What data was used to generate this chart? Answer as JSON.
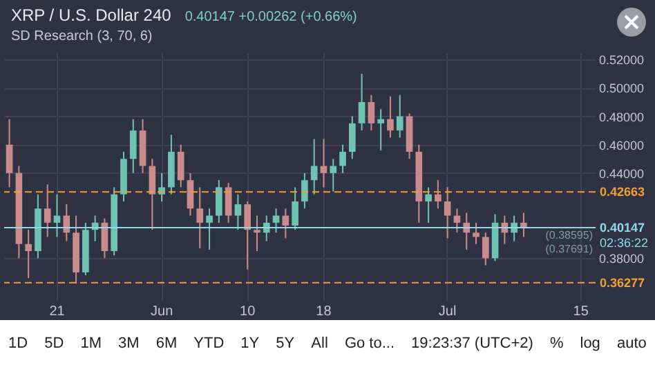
{
  "chart_data": {
    "type": "candlestick",
    "title": "XRP / U.S. Dollar  240",
    "subtitle": "0.40147  +0.00262 (+0.66%)",
    "categories": [
      null,
      null,
      null,
      null,
      null,
      "21",
      null,
      null,
      null,
      null,
      null,
      null,
      null,
      null,
      null,
      null,
      "Jun",
      null,
      null,
      null,
      null,
      null,
      null,
      null,
      null,
      "10",
      null,
      null,
      null,
      null,
      null,
      null,
      null,
      "18",
      null,
      null,
      null,
      null,
      null,
      null,
      null,
      null,
      null,
      null,
      null,
      null,
      "Jul",
      null,
      null,
      null,
      null,
      null,
      null,
      null,
      null,
      null,
      null,
      null,
      null,
      null,
      "15",
      null
    ],
    "ohlc": [
      [
        0.46,
        0.478,
        0.43,
        0.44
      ],
      [
        0.44,
        0.445,
        0.38,
        0.39
      ],
      [
        0.39,
        0.4,
        0.366,
        0.385
      ],
      [
        0.385,
        0.425,
        0.38,
        0.415
      ],
      [
        0.415,
        0.432,
        0.395,
        0.405
      ],
      [
        0.405,
        0.425,
        0.395,
        0.41
      ],
      [
        0.41,
        0.418,
        0.392,
        0.398
      ],
      [
        0.398,
        0.41,
        0.362,
        0.37
      ],
      [
        0.37,
        0.405,
        0.368,
        0.4
      ],
      [
        0.4,
        0.41,
        0.392,
        0.405
      ],
      [
        0.405,
        0.408,
        0.38,
        0.385
      ],
      [
        0.385,
        0.43,
        0.382,
        0.425
      ],
      [
        0.425,
        0.455,
        0.42,
        0.45
      ],
      [
        0.45,
        0.478,
        0.44,
        0.47
      ],
      [
        0.47,
        0.478,
        0.44,
        0.445
      ],
      [
        0.445,
        0.45,
        0.4,
        0.425
      ],
      [
        0.425,
        0.44,
        0.42,
        0.43
      ],
      [
        0.43,
        0.467,
        0.425,
        0.455
      ],
      [
        0.455,
        0.46,
        0.43,
        0.435
      ],
      [
        0.435,
        0.44,
        0.41,
        0.415
      ],
      [
        0.415,
        0.43,
        0.387,
        0.405
      ],
      [
        0.405,
        0.415,
        0.386,
        0.41
      ],
      [
        0.41,
        0.435,
        0.405,
        0.43
      ],
      [
        0.43,
        0.433,
        0.405,
        0.41
      ],
      [
        0.41,
        0.425,
        0.4,
        0.418
      ],
      [
        0.418,
        0.42,
        0.372,
        0.4
      ],
      [
        0.4,
        0.41,
        0.385,
        0.398
      ],
      [
        0.398,
        0.41,
        0.392,
        0.405
      ],
      [
        0.405,
        0.415,
        0.398,
        0.41
      ],
      [
        0.41,
        0.415,
        0.394,
        0.403
      ],
      [
        0.403,
        0.43,
        0.4,
        0.42
      ],
      [
        0.42,
        0.44,
        0.415,
        0.435
      ],
      [
        0.435,
        0.464,
        0.425,
        0.445
      ],
      [
        0.445,
        0.464,
        0.43,
        0.44
      ],
      [
        0.44,
        0.45,
        0.427,
        0.445
      ],
      [
        0.445,
        0.46,
        0.44,
        0.455
      ],
      [
        0.455,
        0.48,
        0.45,
        0.475
      ],
      [
        0.475,
        0.51,
        0.47,
        0.49
      ],
      [
        0.49,
        0.495,
        0.47,
        0.475
      ],
      [
        0.475,
        0.485,
        0.456,
        0.478
      ],
      [
        0.478,
        0.494,
        0.465,
        0.47
      ],
      [
        0.47,
        0.495,
        0.465,
        0.48
      ],
      [
        0.48,
        0.482,
        0.45,
        0.455
      ],
      [
        0.455,
        0.46,
        0.405,
        0.42
      ],
      [
        0.42,
        0.43,
        0.405,
        0.425
      ],
      [
        0.425,
        0.435,
        0.415,
        0.42
      ],
      [
        0.42,
        0.43,
        0.394,
        0.41
      ],
      [
        0.41,
        0.415,
        0.398,
        0.405
      ],
      [
        0.405,
        0.412,
        0.386,
        0.398
      ],
      [
        0.398,
        0.405,
        0.39,
        0.395
      ],
      [
        0.395,
        0.398,
        0.375,
        0.38
      ],
      [
        0.38,
        0.411,
        0.378,
        0.405
      ],
      [
        0.405,
        0.41,
        0.39,
        0.398
      ],
      [
        0.398,
        0.41,
        0.392,
        0.405
      ],
      [
        0.405,
        0.412,
        0.395,
        0.40147
      ],
      null,
      null,
      null,
      null,
      null,
      null,
      null
    ],
    "colors": [
      "#c98b8b",
      "#c98b8b",
      "#c98b8b",
      "#6fc3b2",
      "#c98b8b",
      "#6fc3b2",
      "#c98b8b",
      "#c98b8b",
      "#6fc3b2",
      "#6fc3b2",
      "#c98b8b",
      "#6fc3b2",
      "#6fc3b2",
      "#6fc3b2",
      "#c98b8b",
      "#c98b8b",
      "#6fc3b2",
      "#6fc3b2",
      "#c98b8b",
      "#c98b8b",
      "#c98b8b",
      "#6fc3b2",
      "#6fc3b2",
      "#c98b8b",
      "#6fc3b2",
      "#c98b8b",
      "#c98b8b",
      "#6fc3b2",
      "#6fc3b2",
      "#c98b8b",
      "#6fc3b2",
      "#6fc3b2",
      "#6fc3b2",
      "#c98b8b",
      "#6fc3b2",
      "#6fc3b2",
      "#6fc3b2",
      "#6fc3b2",
      "#c98b8b",
      "#6fc3b2",
      "#c98b8b",
      "#6fc3b2",
      "#c98b8b",
      "#c98b8b",
      "#6fc3b2",
      "#c98b8b",
      "#c98b8b",
      "#c98b8b",
      "#c98b8b",
      "#c98b8b",
      "#c98b8b",
      "#6fc3b2",
      "#c98b8b",
      "#6fc3b2",
      "#c98b8b",
      null,
      null,
      null,
      null,
      null,
      null,
      null
    ],
    "ylim": [
      0.35,
      0.525
    ],
    "yticks": [
      {
        "value": 0.38,
        "label": "0.38000"
      },
      {
        "value": 0.44,
        "label": "0.44000"
      },
      {
        "value": 0.46,
        "label": "0.46000"
      },
      {
        "value": 0.48,
        "label": "0.48000"
      },
      {
        "value": 0.5,
        "label": "0.50000"
      },
      {
        "value": 0.52,
        "label": "0.52000"
      }
    ],
    "grid": true,
    "ref_lines": [
      {
        "axis": "y",
        "value": 0.42663,
        "label": "0.42663",
        "color": "#f0a030",
        "line_style": "dashed"
      },
      {
        "axis": "y",
        "value": 0.36277,
        "label": "0.36277",
        "color": "#f0a030",
        "line_style": "dashed"
      },
      {
        "axis": "y",
        "value": 0.40147,
        "label": "0.40147",
        "color": "#8fd9e8",
        "line_style": "solid"
      }
    ],
    "annotations": [
      "SD Research (3, 70, 6)",
      "02:36:22",
      "1D",
      "5D",
      "1M",
      "3M",
      "6M",
      "YTD",
      "1Y",
      "5Y",
      "All",
      "Go to...",
      "19:23:37 (UTC+2)",
      "%",
      "log",
      "auto",
      "(0.38595)",
      "(0.37691)"
    ]
  }
}
